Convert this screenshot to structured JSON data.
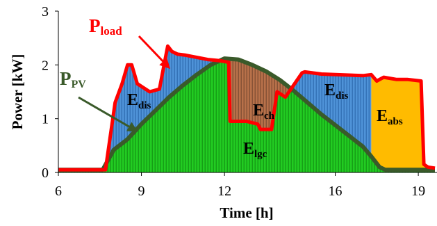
{
  "chart_data": {
    "type": "area",
    "xlabel": "Time [h]",
    "ylabel": "Power [kW]",
    "xlim": [
      6,
      19.6
    ],
    "ylim": [
      0,
      3
    ],
    "x_ticks": [
      "6",
      "9",
      "12",
      "16",
      "19"
    ],
    "y_ticks": [
      "0",
      "1",
      "2",
      "3"
    ],
    "grid": false,
    "series": [
      {
        "name": "Pload",
        "color": "#ff0000",
        "x": [
          6,
          7.7,
          8.05,
          8.3,
          8.5,
          8.65,
          8.85,
          9.15,
          9.3,
          9.65,
          9.8,
          9.95,
          10.1,
          10.3,
          10.6,
          11.4,
          11.8,
          12.15,
          12.2,
          12.8,
          13.2,
          13.3,
          13.7,
          13.9,
          14.2,
          14.8,
          14.9,
          15.5,
          17.0,
          17.3,
          17.5,
          17.75,
          18.2,
          18.6,
          19.1,
          19.2,
          19.35,
          19.6
        ],
        "y": [
          0.05,
          0.05,
          1.3,
          1.65,
          2.0,
          2.0,
          1.65,
          1.55,
          1.5,
          1.55,
          1.95,
          2.35,
          2.25,
          2.2,
          2.18,
          2.1,
          2.08,
          2.05,
          0.95,
          0.95,
          0.9,
          0.8,
          0.8,
          1.5,
          1.4,
          1.85,
          1.87,
          1.83,
          1.8,
          1.82,
          1.7,
          1.77,
          1.73,
          1.73,
          1.7,
          0.15,
          0.1,
          0.08
        ]
      },
      {
        "name": "PPV",
        "color": "#3a5a2a",
        "x": [
          6,
          7.6,
          8.0,
          8.5,
          9.0,
          9.5,
          10.0,
          10.5,
          11.0,
          11.5,
          12.0,
          12.5,
          13.0,
          13.5,
          14.0,
          14.5,
          15.0,
          15.5,
          16.0,
          16.5,
          17.0,
          17.3,
          17.6,
          17.8,
          19.6
        ],
        "y": [
          0.05,
          0.05,
          0.42,
          0.62,
          0.9,
          1.15,
          1.4,
          1.62,
          1.82,
          2.0,
          2.12,
          2.1,
          2.0,
          1.88,
          1.72,
          1.52,
          1.3,
          1.08,
          0.88,
          0.68,
          0.48,
          0.3,
          0.1,
          0.05,
          0.05
        ]
      }
    ],
    "regions": [
      {
        "name": "Elgc",
        "color": "#22cc22"
      },
      {
        "name": "Edis",
        "color": "#4f93d8"
      },
      {
        "name": "Ech",
        "color": "#b8714a"
      },
      {
        "name": "Eabs",
        "color": "#ffbb00"
      }
    ],
    "annotations": {
      "pload": {
        "main": "P",
        "sub": "load"
      },
      "ppv": {
        "main": "P",
        "sub": "PV"
      },
      "edis_left": {
        "main": "E",
        "sub": "dis"
      },
      "ech": {
        "main": "E",
        "sub": "ch"
      },
      "edis_right": {
        "main": "E",
        "sub": "dis"
      },
      "eabs": {
        "main": "E",
        "sub": "abs"
      },
      "elgc": {
        "main": "E",
        "sub": "lgc"
      }
    }
  }
}
